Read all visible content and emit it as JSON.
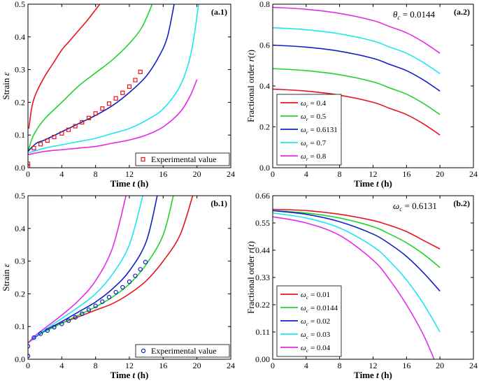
{
  "chart_data": [
    {
      "id": "a1",
      "type": "line",
      "panel_label": "(a.1)",
      "xlabel": "Time t (h)",
      "ylabel": "Strain ε",
      "xlim": [
        0,
        24
      ],
      "ylim": [
        0,
        0.5
      ],
      "xticks": [
        0,
        4,
        8,
        12,
        16,
        20,
        24
      ],
      "yticks": [
        0.0,
        0.1,
        0.2,
        0.3,
        0.4,
        0.5
      ],
      "ytick_labels": [
        "0.0",
        "0.1",
        "0.2",
        "0.3",
        "0.4",
        "0.5"
      ],
      "legend_position": "bottom-right",
      "legend": [
        {
          "label": "Experimental value",
          "marker": "square",
          "color": "#e8141b"
        }
      ],
      "series": [
        {
          "name": "ω = 0.4",
          "color": "#e8141b",
          "x": [
            0.1,
            0.5,
            1,
            2,
            3,
            4,
            5,
            6,
            7,
            8.5
          ],
          "y": [
            0.12,
            0.19,
            0.23,
            0.28,
            0.32,
            0.36,
            0.39,
            0.42,
            0.45,
            0.5
          ]
        },
        {
          "name": "ω = 0.5",
          "color": "#22d32b",
          "x": [
            0,
            0.5,
            1,
            2,
            4,
            6,
            8,
            10,
            12,
            13.5,
            14.7
          ],
          "y": [
            0.05,
            0.09,
            0.115,
            0.15,
            0.2,
            0.25,
            0.29,
            0.33,
            0.38,
            0.43,
            0.5
          ]
        },
        {
          "name": "ω = 0.6131",
          "color": "#1020c8",
          "x": [
            0,
            1,
            2,
            4,
            6,
            8,
            10,
            12,
            14,
            15.5,
            16.5,
            17.3
          ],
          "y": [
            0.05,
            0.075,
            0.085,
            0.11,
            0.135,
            0.16,
            0.19,
            0.23,
            0.28,
            0.34,
            0.4,
            0.5
          ]
        },
        {
          "name": "ω = 0.7",
          "color": "#1fe6ef",
          "x": [
            0,
            2,
            4,
            6,
            8,
            10,
            12,
            14,
            16,
            18,
            19.3,
            20.2
          ],
          "y": [
            0.045,
            0.06,
            0.07,
            0.08,
            0.09,
            0.105,
            0.12,
            0.145,
            0.18,
            0.25,
            0.35,
            0.5
          ]
        },
        {
          "name": "ω = 0.8",
          "color": "#e62ae6",
          "x": [
            0,
            2,
            4,
            6,
            8,
            10,
            12,
            14,
            16,
            18,
            19.2,
            20
          ],
          "y": [
            0.04,
            0.05,
            0.055,
            0.06,
            0.065,
            0.075,
            0.085,
            0.1,
            0.125,
            0.17,
            0.22,
            0.27
          ]
        }
      ],
      "scatter": {
        "name": "Experimental value",
        "marker": "square",
        "color": "#e8141b",
        "x": [
          0,
          0,
          0.7,
          1.5,
          2.3,
          3.1,
          4.0,
          4.8,
          5.6,
          6.4,
          7.2,
          8.0,
          8.8,
          9.6,
          10.4,
          11.2,
          12.0,
          12.7,
          13.3
        ],
        "y": [
          0.005,
          0.012,
          0.06,
          0.072,
          0.083,
          0.094,
          0.105,
          0.116,
          0.127,
          0.139,
          0.152,
          0.166,
          0.181,
          0.196,
          0.212,
          0.229,
          0.248,
          0.268,
          0.293
        ]
      }
    },
    {
      "id": "a2",
      "type": "line",
      "panel_label": "(a.2)",
      "annotation": "θc = 0.0144",
      "xlabel": "Time t (h)",
      "ylabel": "Fractional order r(t)",
      "xlim": [
        0,
        24
      ],
      "ylim": [
        0,
        0.8
      ],
      "xticks": [
        0,
        4,
        8,
        12,
        16,
        20,
        24
      ],
      "yticks": [
        0.0,
        0.2,
        0.4,
        0.6,
        0.8
      ],
      "ytick_labels": [
        "0.0",
        "0.2",
        "0.4",
        "0.6",
        "0.8"
      ],
      "legend_position": "bottom-left",
      "series": [
        {
          "name": "ωr = 0.4",
          "color": "#e8141b",
          "x": [
            0,
            4,
            8,
            12,
            14,
            16,
            18,
            20
          ],
          "y": [
            0.385,
            0.375,
            0.355,
            0.32,
            0.29,
            0.26,
            0.215,
            0.16
          ]
        },
        {
          "name": "ωr = 0.5",
          "color": "#22d32b",
          "x": [
            0,
            4,
            8,
            12,
            14,
            16,
            18,
            20
          ],
          "y": [
            0.485,
            0.475,
            0.455,
            0.42,
            0.39,
            0.36,
            0.315,
            0.26
          ]
        },
        {
          "name": "ωr = 0.6131",
          "color": "#1020c8",
          "x": [
            0,
            4,
            8,
            12,
            14,
            16,
            18,
            20
          ],
          "y": [
            0.6,
            0.59,
            0.57,
            0.535,
            0.505,
            0.475,
            0.43,
            0.375
          ]
        },
        {
          "name": "ωr = 0.7",
          "color": "#1fe6ef",
          "x": [
            0,
            4,
            8,
            12,
            14,
            16,
            18,
            20
          ],
          "y": [
            0.685,
            0.675,
            0.655,
            0.62,
            0.59,
            0.56,
            0.515,
            0.46
          ]
        },
        {
          "name": "ωr = 0.8",
          "color": "#e62ae6",
          "x": [
            0,
            4,
            8,
            12,
            14,
            16,
            18,
            20
          ],
          "y": [
            0.785,
            0.775,
            0.755,
            0.72,
            0.69,
            0.66,
            0.615,
            0.56
          ]
        }
      ]
    },
    {
      "id": "b1",
      "type": "line",
      "panel_label": "(b.1)",
      "xlabel": "Time t (h)",
      "ylabel": "Strain ε",
      "xlim": [
        0,
        24
      ],
      "ylim": [
        0,
        0.5
      ],
      "xticks": [
        0,
        4,
        8,
        12,
        16,
        20,
        24
      ],
      "yticks": [
        0.0,
        0.1,
        0.2,
        0.3,
        0.4,
        0.5
      ],
      "ytick_labels": [
        "0.0",
        "0.1",
        "0.2",
        "0.3",
        "0.4",
        "0.5"
      ],
      "legend_position": "bottom-right",
      "legend": [
        {
          "label": "Experimental value",
          "marker": "circle",
          "color": "#1020c8"
        }
      ],
      "series": [
        {
          "name": "ωc = 0.01",
          "color": "#e8141b",
          "x": [
            0,
            1,
            2,
            4,
            6,
            8,
            10,
            12,
            14,
            16,
            18,
            19.5
          ],
          "y": [
            0.05,
            0.07,
            0.085,
            0.11,
            0.13,
            0.15,
            0.17,
            0.2,
            0.24,
            0.3,
            0.38,
            0.5
          ]
        },
        {
          "name": "ωc = 0.0144",
          "color": "#22d32b",
          "x": [
            0,
            1,
            2,
            4,
            6,
            8,
            10,
            12,
            14,
            16,
            17.2
          ],
          "y": [
            0.05,
            0.07,
            0.085,
            0.11,
            0.135,
            0.16,
            0.19,
            0.23,
            0.29,
            0.38,
            0.5
          ]
        },
        {
          "name": "ωc = 0.02",
          "color": "#1020c8",
          "x": [
            0,
            1,
            2,
            4,
            6,
            8,
            10,
            12,
            14,
            15.3
          ],
          "y": [
            0.05,
            0.07,
            0.088,
            0.115,
            0.145,
            0.175,
            0.215,
            0.27,
            0.36,
            0.5
          ]
        },
        {
          "name": "ωc = 0.03",
          "color": "#1fe6ef",
          "x": [
            0,
            1,
            2,
            4,
            6,
            8,
            10,
            12,
            13.6
          ],
          "y": [
            0.05,
            0.072,
            0.09,
            0.125,
            0.16,
            0.2,
            0.26,
            0.35,
            0.5
          ]
        },
        {
          "name": "ωc = 0.04",
          "color": "#e62ae6",
          "x": [
            0,
            1,
            2,
            4,
            6,
            8,
            10,
            11.6
          ],
          "y": [
            0.05,
            0.075,
            0.095,
            0.135,
            0.18,
            0.24,
            0.34,
            0.5
          ]
        }
      ],
      "scatter": {
        "name": "Experimental value",
        "marker": "circle",
        "color": "#1020c8",
        "x": [
          0,
          0,
          0.7,
          1.5,
          2.3,
          3.1,
          4.0,
          4.8,
          5.6,
          6.4,
          7.2,
          8.0,
          8.8,
          9.6,
          10.4,
          11.2,
          12.0,
          12.7,
          13.3,
          13.9
        ],
        "y": [
          0.01,
          0.04,
          0.066,
          0.078,
          0.088,
          0.098,
          0.108,
          0.118,
          0.128,
          0.139,
          0.151,
          0.163,
          0.176,
          0.19,
          0.205,
          0.22,
          0.237,
          0.255,
          0.275,
          0.297
        ]
      }
    },
    {
      "id": "b2",
      "type": "line",
      "panel_label": "(b.2)",
      "annotation": "ωc = 0.6131",
      "xlabel": "Time t (h)",
      "ylabel": "Fractional order r(t)",
      "xlim": [
        0,
        24
      ],
      "ylim": [
        0,
        0.66
      ],
      "xticks": [
        0,
        4,
        8,
        12,
        16,
        20,
        24
      ],
      "yticks": [
        0.0,
        0.11,
        0.22,
        0.33,
        0.44,
        0.55,
        0.66
      ],
      "ytick_labels": [
        "0.00",
        "0.11",
        "0.22",
        "0.33",
        "0.44",
        "0.55",
        "0.66"
      ],
      "legend_position": "bottom-left",
      "series": [
        {
          "name": "ωc = 0.01",
          "color": "#e8141b",
          "x": [
            0,
            4,
            8,
            12,
            14,
            16,
            18,
            20
          ],
          "y": [
            0.605,
            0.6,
            0.585,
            0.56,
            0.54,
            0.515,
            0.48,
            0.445
          ]
        },
        {
          "name": "ωc = 0.0144",
          "color": "#22d32b",
          "x": [
            0,
            4,
            8,
            12,
            14,
            16,
            18,
            20
          ],
          "y": [
            0.6,
            0.59,
            0.57,
            0.535,
            0.505,
            0.47,
            0.425,
            0.37
          ]
        },
        {
          "name": "ωc = 0.02",
          "color": "#1020c8",
          "x": [
            0,
            4,
            8,
            12,
            14,
            16,
            18,
            20
          ],
          "y": [
            0.6,
            0.585,
            0.555,
            0.505,
            0.465,
            0.415,
            0.35,
            0.275
          ]
        },
        {
          "name": "ωc = 0.03",
          "color": "#1fe6ef",
          "x": [
            0,
            4,
            8,
            12,
            14,
            16,
            18,
            20
          ],
          "y": [
            0.59,
            0.57,
            0.53,
            0.455,
            0.395,
            0.32,
            0.225,
            0.11
          ]
        },
        {
          "name": "ωc = 0.04",
          "color": "#e62ae6",
          "x": [
            0,
            4,
            8,
            12,
            14,
            16,
            18,
            19.3
          ],
          "y": [
            0.575,
            0.55,
            0.5,
            0.4,
            0.32,
            0.22,
            0.1,
            0.0
          ]
        }
      ]
    }
  ]
}
